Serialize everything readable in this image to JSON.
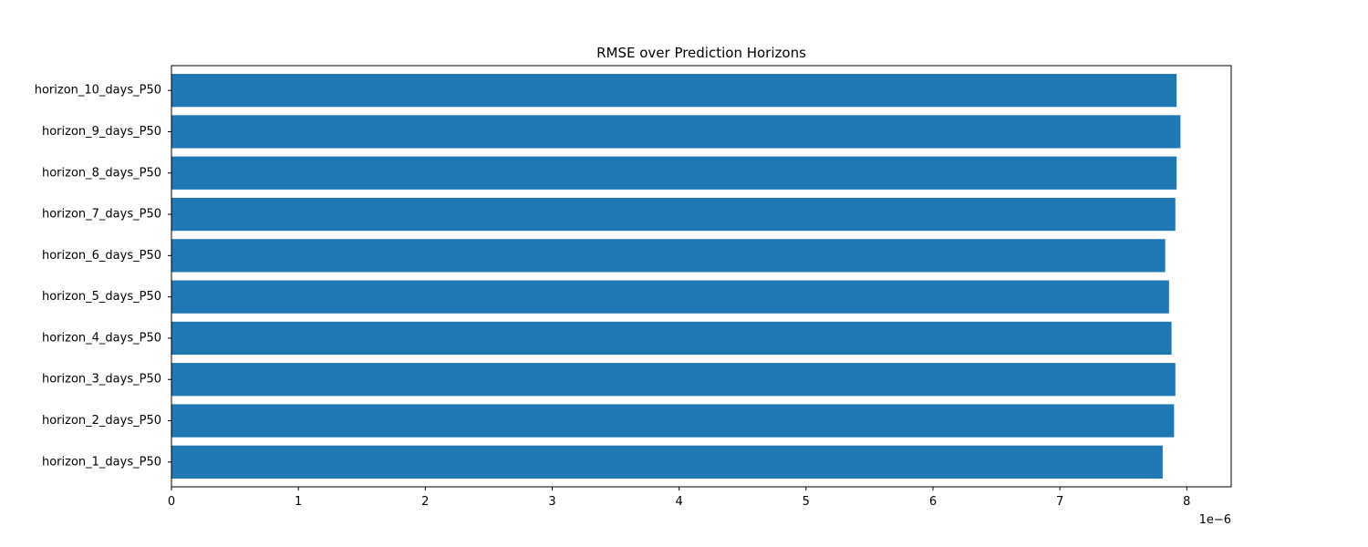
{
  "chart_data": {
    "type": "bar",
    "orientation": "horizontal",
    "title": "RMSE over Prediction Horizons",
    "xlabel": "",
    "ylabel": "",
    "x_offset_text": "1e−6",
    "x_scale_factor": 1e-06,
    "xlim": [
      0,
      8.35
    ],
    "xticks": [
      0,
      1,
      2,
      3,
      4,
      5,
      6,
      7,
      8
    ],
    "categories": [
      "horizon_1_days_P50",
      "horizon_2_days_P50",
      "horizon_3_days_P50",
      "horizon_4_days_P50",
      "horizon_5_days_P50",
      "horizon_6_days_P50",
      "horizon_7_days_P50",
      "horizon_8_days_P50",
      "horizon_9_days_P50",
      "horizon_10_days_P50"
    ],
    "values": [
      7.81,
      7.9,
      7.91,
      7.88,
      7.86,
      7.83,
      7.91,
      7.92,
      7.95,
      7.92
    ],
    "bar_color": "#1f77b4",
    "grid": false,
    "legend": false
  }
}
